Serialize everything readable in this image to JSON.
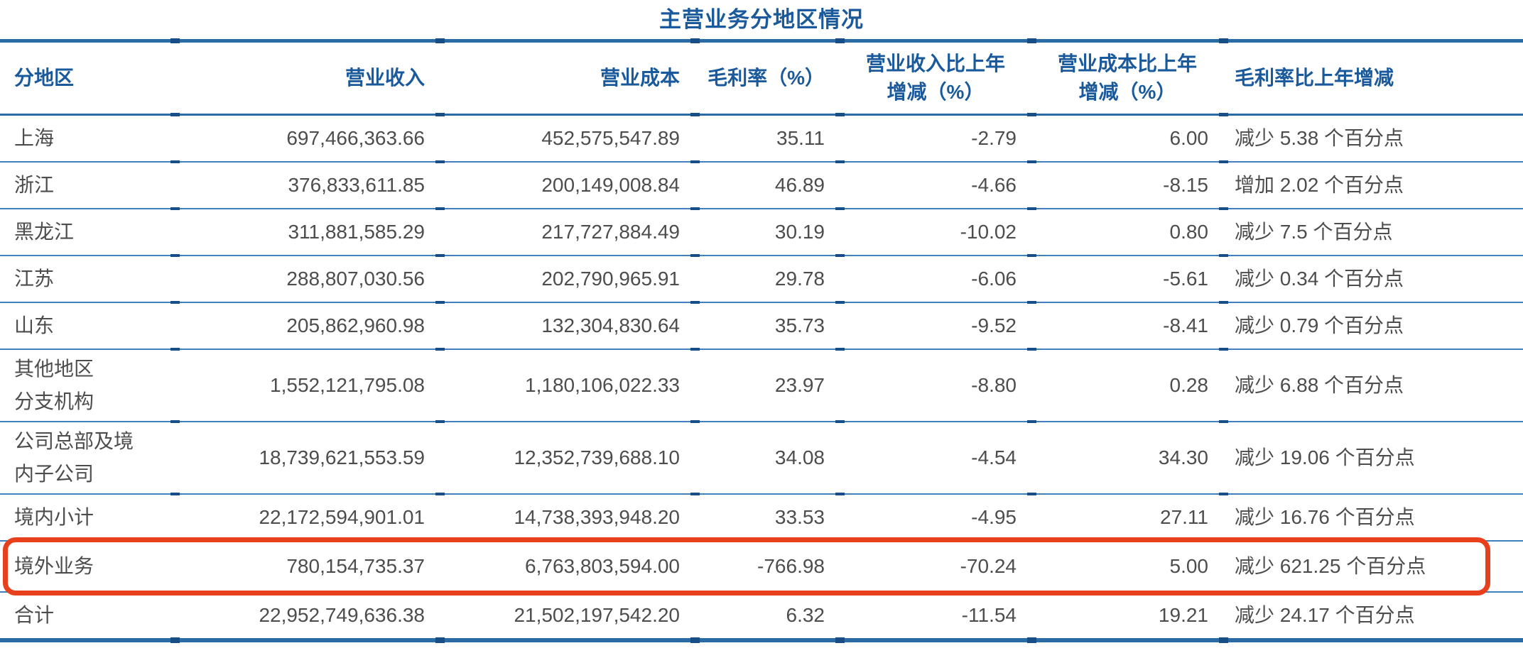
{
  "title": "主营业务分地区情况",
  "colors": {
    "header_blue": "#1A5A9C",
    "rule_blue": "#2A6AA5",
    "thin_rule_blue": "#4080BE",
    "rule_tick_blue": "#174E86",
    "data_text_gray": "#4D4D4D",
    "highlight_red": "#E8401C"
  },
  "table": {
    "columns": [
      {
        "label": "分地区",
        "align": "left"
      },
      {
        "label": "营业收入",
        "align": "right"
      },
      {
        "label": "营业成本",
        "align": "right"
      },
      {
        "label": "毛利率（%）",
        "align": "right"
      },
      {
        "label": "营业收入比上年\n增减（%）",
        "align": "center"
      },
      {
        "label": "营业成本比上年\n增减（%）",
        "align": "center"
      },
      {
        "label": "毛利率比上年增减",
        "align": "left"
      }
    ],
    "rows": [
      {
        "region": "上海",
        "revenue": "697,466,363.66",
        "cost": "452,575,547.89",
        "margin": "35.11",
        "revenue_yoy": "-2.79",
        "cost_yoy": "6.00",
        "margin_change": "减少 5.38 个百分点",
        "highlight": false
      },
      {
        "region": "浙江",
        "revenue": "376,833,611.85",
        "cost": "200,149,008.84",
        "margin": "46.89",
        "revenue_yoy": "-4.66",
        "cost_yoy": "-8.15",
        "margin_change": "增加 2.02 个百分点",
        "highlight": false
      },
      {
        "region": "黑龙江",
        "revenue": "311,881,585.29",
        "cost": "217,727,884.49",
        "margin": "30.19",
        "revenue_yoy": "-10.02",
        "cost_yoy": "0.80",
        "margin_change": "减少 7.5 个百分点",
        "highlight": false
      },
      {
        "region": "江苏",
        "revenue": "288,807,030.56",
        "cost": "202,790,965.91",
        "margin": "29.78",
        "revenue_yoy": "-6.06",
        "cost_yoy": "-5.61",
        "margin_change": "减少 0.34 个百分点",
        "highlight": false
      },
      {
        "region": "山东",
        "revenue": "205,862,960.98",
        "cost": "132,304,830.64",
        "margin": "35.73",
        "revenue_yoy": "-9.52",
        "cost_yoy": "-8.41",
        "margin_change": "减少 0.79 个百分点",
        "highlight": false
      },
      {
        "region": "其他地区\n分支机构",
        "revenue": "1,552,121,795.08",
        "cost": "1,180,106,022.33",
        "margin": "23.97",
        "revenue_yoy": "-8.80",
        "cost_yoy": "0.28",
        "margin_change": "减少 6.88 个百分点",
        "highlight": false
      },
      {
        "region": "公司总部及境\n内子公司",
        "revenue": "18,739,621,553.59",
        "cost": "12,352,739,688.10",
        "margin": "34.08",
        "revenue_yoy": "-4.54",
        "cost_yoy": "34.30",
        "margin_change": "减少 19.06 个百分点",
        "highlight": false
      },
      {
        "region": "境内小计",
        "revenue": "22,172,594,901.01",
        "cost": "14,738,393,948.20",
        "margin": "33.53",
        "revenue_yoy": "-4.95",
        "cost_yoy": "27.11",
        "margin_change": "减少 16.76 个百分点",
        "highlight": false
      },
      {
        "region": "境外业务",
        "revenue": "780,154,735.37",
        "cost": "6,763,803,594.00",
        "margin": "-766.98",
        "revenue_yoy": "-70.24",
        "cost_yoy": "5.00",
        "margin_change": "减少 621.25 个百分点",
        "highlight": true
      },
      {
        "region": "合计",
        "revenue": "22,952,749,636.38",
        "cost": "21,502,197,542.20",
        "margin": "6.32",
        "revenue_yoy": "-11.54",
        "cost_yoy": "19.21",
        "margin_change": "减少 24.17 个百分点",
        "highlight": false
      }
    ]
  }
}
